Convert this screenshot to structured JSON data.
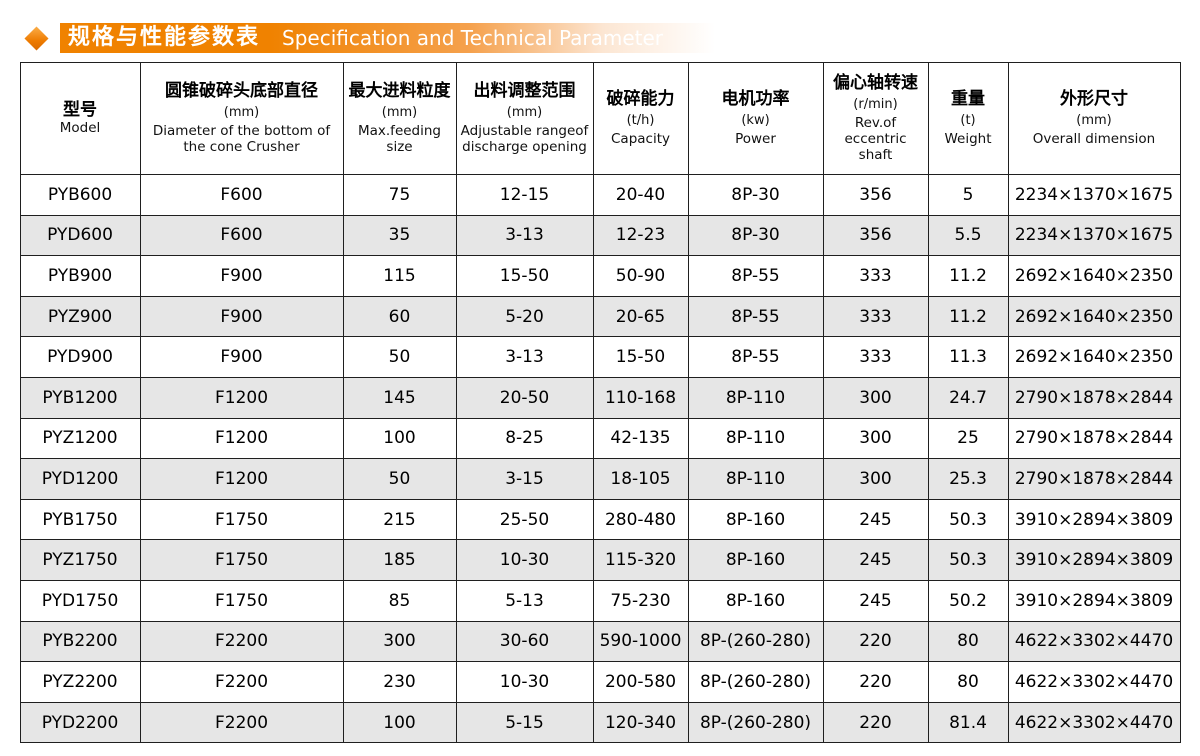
{
  "header": {
    "title_cn": "规格与性能参数表",
    "title_en": "Specification and Technical Parameter"
  },
  "colors": {
    "accent": "#F08200",
    "row_alt": "#E6E6E6",
    "border": "#1F1F1F"
  },
  "icons": {
    "diamond": "diamond-bullet"
  },
  "table": {
    "columns": [
      {
        "cn": "型号",
        "unit": "",
        "en": "Model"
      },
      {
        "cn": "圆锥破碎头底部直径",
        "unit": "(mm)",
        "en": "Diameter of the bottom of the cone Crusher"
      },
      {
        "cn": "最大进料粒度",
        "unit": "(mm)",
        "en": "Max.feeding size"
      },
      {
        "cn": "出料调整范围",
        "unit": "(mm)",
        "en": "Adjustable rangeof discharge opening"
      },
      {
        "cn": "破碎能力",
        "unit": "(t/h)",
        "en": "Capacity"
      },
      {
        "cn": "电机功率",
        "unit": "(kw)",
        "en": "Power"
      },
      {
        "cn": "偏心轴转速",
        "unit": "(r/min)",
        "en": "Rev.of eccentric shaft"
      },
      {
        "cn": "重量",
        "unit": "(t)",
        "en": "Weight"
      },
      {
        "cn": "外形尺寸",
        "unit": "(mm)",
        "en": "Overall dimension"
      }
    ],
    "rows": [
      [
        "PYB600",
        "F600",
        "75",
        "12-15",
        "20-40",
        "8P-30",
        "356",
        "5",
        "2234×1370×1675"
      ],
      [
        "PYD600",
        "F600",
        "35",
        "3-13",
        "12-23",
        "8P-30",
        "356",
        "5.5",
        "2234×1370×1675"
      ],
      [
        "PYB900",
        "F900",
        "115",
        "15-50",
        "50-90",
        "8P-55",
        "333",
        "11.2",
        "2692×1640×2350"
      ],
      [
        "PYZ900",
        "F900",
        "60",
        "5-20",
        "20-65",
        "8P-55",
        "333",
        "11.2",
        "2692×1640×2350"
      ],
      [
        "PYD900",
        "F900",
        "50",
        "3-13",
        "15-50",
        "8P-55",
        "333",
        "11.3",
        "2692×1640×2350"
      ],
      [
        "PYB1200",
        "F1200",
        "145",
        "20-50",
        "110-168",
        "8P-110",
        "300",
        "24.7",
        "2790×1878×2844"
      ],
      [
        "PYZ1200",
        "F1200",
        "100",
        "8-25",
        "42-135",
        "8P-110",
        "300",
        "25",
        "2790×1878×2844"
      ],
      [
        "PYD1200",
        "F1200",
        "50",
        "3-15",
        "18-105",
        "8P-110",
        "300",
        "25.3",
        "2790×1878×2844"
      ],
      [
        "PYB1750",
        "F1750",
        "215",
        "25-50",
        "280-480",
        "8P-160",
        "245",
        "50.3",
        "3910×2894×3809"
      ],
      [
        "PYZ1750",
        "F1750",
        "185",
        "10-30",
        "115-320",
        "8P-160",
        "245",
        "50.3",
        "3910×2894×3809"
      ],
      [
        "PYD1750",
        "F1750",
        "85",
        "5-13",
        "75-230",
        "8P-160",
        "245",
        "50.2",
        "3910×2894×3809"
      ],
      [
        "PYB2200",
        "F2200",
        "300",
        "30-60",
        "590-1000",
        "8P-(260-280)",
        "220",
        "80",
        "4622×3302×4470"
      ],
      [
        "PYZ2200",
        "F2200",
        "230",
        "10-30",
        "200-580",
        "8P-(260-280)",
        "220",
        "80",
        "4622×3302×4470"
      ],
      [
        "PYD2200",
        "F2200",
        "100",
        "5-15",
        "120-340",
        "8P-(260-280)",
        "220",
        "81.4",
        "4622×3302×4470"
      ]
    ]
  }
}
